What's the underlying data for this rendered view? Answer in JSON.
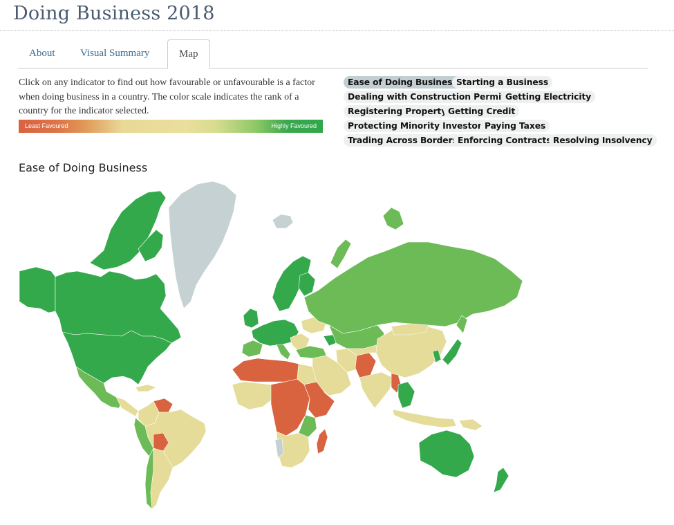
{
  "header": {
    "title": "Doing Business 2018"
  },
  "tabs": [
    {
      "label": "About",
      "active": false
    },
    {
      "label": "Visual Summary",
      "active": false
    },
    {
      "label": "Map",
      "active": true
    }
  ],
  "description": "Click on any indicator to find out how favourable or unfavourable is a factor when doing business in a country. The color scale indicates the rank of a country for the indicator selected.",
  "legend": {
    "low_label": "Least Favoured",
    "high_label": "Highly Favoured",
    "colors": {
      "least": "#d9623f",
      "middle": "#eadf9c",
      "high": "#2fa84a"
    }
  },
  "indicators": [
    {
      "label": "Ease of Doing Business",
      "active": true
    },
    {
      "label": "Starting a Business",
      "active": false
    },
    {
      "label": "Dealing with Construction Permits",
      "active": false
    },
    {
      "label": "Getting Electricity",
      "active": false
    },
    {
      "label": "Registering Property",
      "active": false
    },
    {
      "label": "Getting Credit",
      "active": false
    },
    {
      "label": "Protecting Minority Investors",
      "active": false
    },
    {
      "label": "Paying Taxes",
      "active": false
    },
    {
      "label": "Trading Across Borders",
      "active": false
    },
    {
      "label": "Enforcing Contracts",
      "active": false
    },
    {
      "label": "Resolving Insolvency",
      "active": false
    }
  ],
  "map": {
    "title": "Ease of Doing Business",
    "colors": {
      "high": "#34a94c",
      "upper_mid": "#6cbb57",
      "mid": "#e4dc98",
      "low": "#d9623f",
      "no_data": "#c5d1d3"
    }
  }
}
